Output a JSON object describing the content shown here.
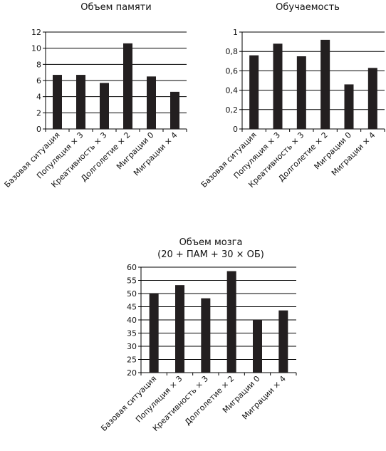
{
  "chart_data": [
    {
      "type": "bar",
      "title": "Объем памяти",
      "categories": [
        "Базовая ситуация",
        "Популяция × 3",
        "Креативность × 3",
        "Долголетие × 2",
        "Миграции 0",
        "Миграции × 4"
      ],
      "values": [
        6.7,
        6.7,
        5.7,
        10.6,
        6.5,
        4.6
      ],
      "ylim": [
        0,
        12
      ],
      "yticks": [
        "0",
        "2",
        "4",
        "6",
        "8",
        "10",
        "12"
      ],
      "ytick_values": [
        0,
        2,
        4,
        6,
        8,
        10,
        12
      ],
      "xlabel": "",
      "ylabel": "",
      "grid": true,
      "bar_color": "#231f20"
    },
    {
      "type": "bar",
      "title": "Обучаемость",
      "categories": [
        "Базовая ситуация",
        "Популяция × 3",
        "Креативность × 3",
        "Долголетие × 2",
        "Миграции 0",
        "Миграции × 4"
      ],
      "values": [
        0.76,
        0.88,
        0.75,
        0.92,
        0.46,
        0.63
      ],
      "ylim": [
        0,
        1
      ],
      "yticks": [
        "0",
        "0,2",
        "0,4",
        "0,6",
        "0,8",
        "1"
      ],
      "ytick_values": [
        0,
        0.2,
        0.4,
        0.6,
        0.8,
        1
      ],
      "xlabel": "",
      "ylabel": "",
      "grid": true,
      "bar_color": "#231f20"
    },
    {
      "type": "bar",
      "title": "Объем мозга",
      "subtitle": "(20 + ПАМ + 30 × ОБ)",
      "categories": [
        "Базовая ситуация",
        "Популяция × 3",
        "Креативность × 3",
        "Долголетие × 2",
        "Миграции 0",
        "Миграции × 4"
      ],
      "values": [
        50,
        53.2,
        48.2,
        58.5,
        40,
        43.6
      ],
      "ylim": [
        20,
        60
      ],
      "yticks": [
        "20",
        "25",
        "30",
        "35",
        "40",
        "45",
        "50",
        "55",
        "60"
      ],
      "ytick_values": [
        20,
        25,
        30,
        35,
        40,
        45,
        50,
        55,
        60
      ],
      "xlabel": "",
      "ylabel": "",
      "grid": true,
      "bar_color": "#231f20"
    }
  ]
}
